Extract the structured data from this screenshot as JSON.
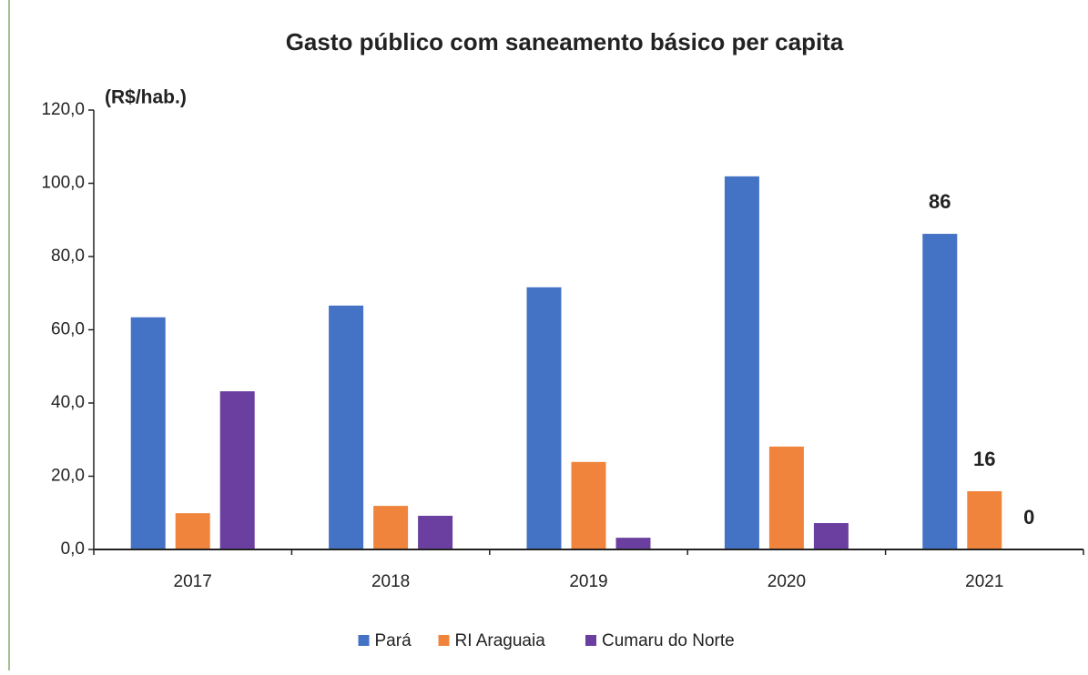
{
  "chart_data": {
    "type": "bar",
    "title": "Gasto público com saneamento básico per capita",
    "y_label": "(R$/hab.)",
    "categories": [
      "2017",
      "2018",
      "2019",
      "2020",
      "2021"
    ],
    "series": [
      {
        "name": "Pará",
        "color": "#4472c4",
        "values": [
          63.4,
          66.6,
          71.6,
          101.9,
          86.2
        ],
        "value_labels": [
          null,
          null,
          null,
          null,
          "86"
        ]
      },
      {
        "name": "RI Araguaia",
        "color": "#f0843c",
        "values": [
          9.9,
          11.9,
          23.9,
          28.1,
          15.9
        ],
        "value_labels": [
          null,
          null,
          null,
          null,
          "16"
        ]
      },
      {
        "name": "Cumaru do Norte",
        "color": "#6b3fa0",
        "values": [
          43.2,
          9.2,
          3.2,
          7.2,
          0
        ],
        "value_labels": [
          null,
          null,
          null,
          null,
          "0"
        ]
      }
    ],
    "ylim": [
      0,
      120
    ],
    "yticks": [
      {
        "value": 0,
        "label": "0,0"
      },
      {
        "value": 20,
        "label": "20,0"
      },
      {
        "value": 40,
        "label": "40,0"
      },
      {
        "value": 60,
        "label": "60,0"
      },
      {
        "value": 80,
        "label": "80,0"
      },
      {
        "value": 100,
        "label": "100,0"
      },
      {
        "value": 120,
        "label": "120,0"
      }
    ],
    "grid": false,
    "legend": "bottom"
  }
}
